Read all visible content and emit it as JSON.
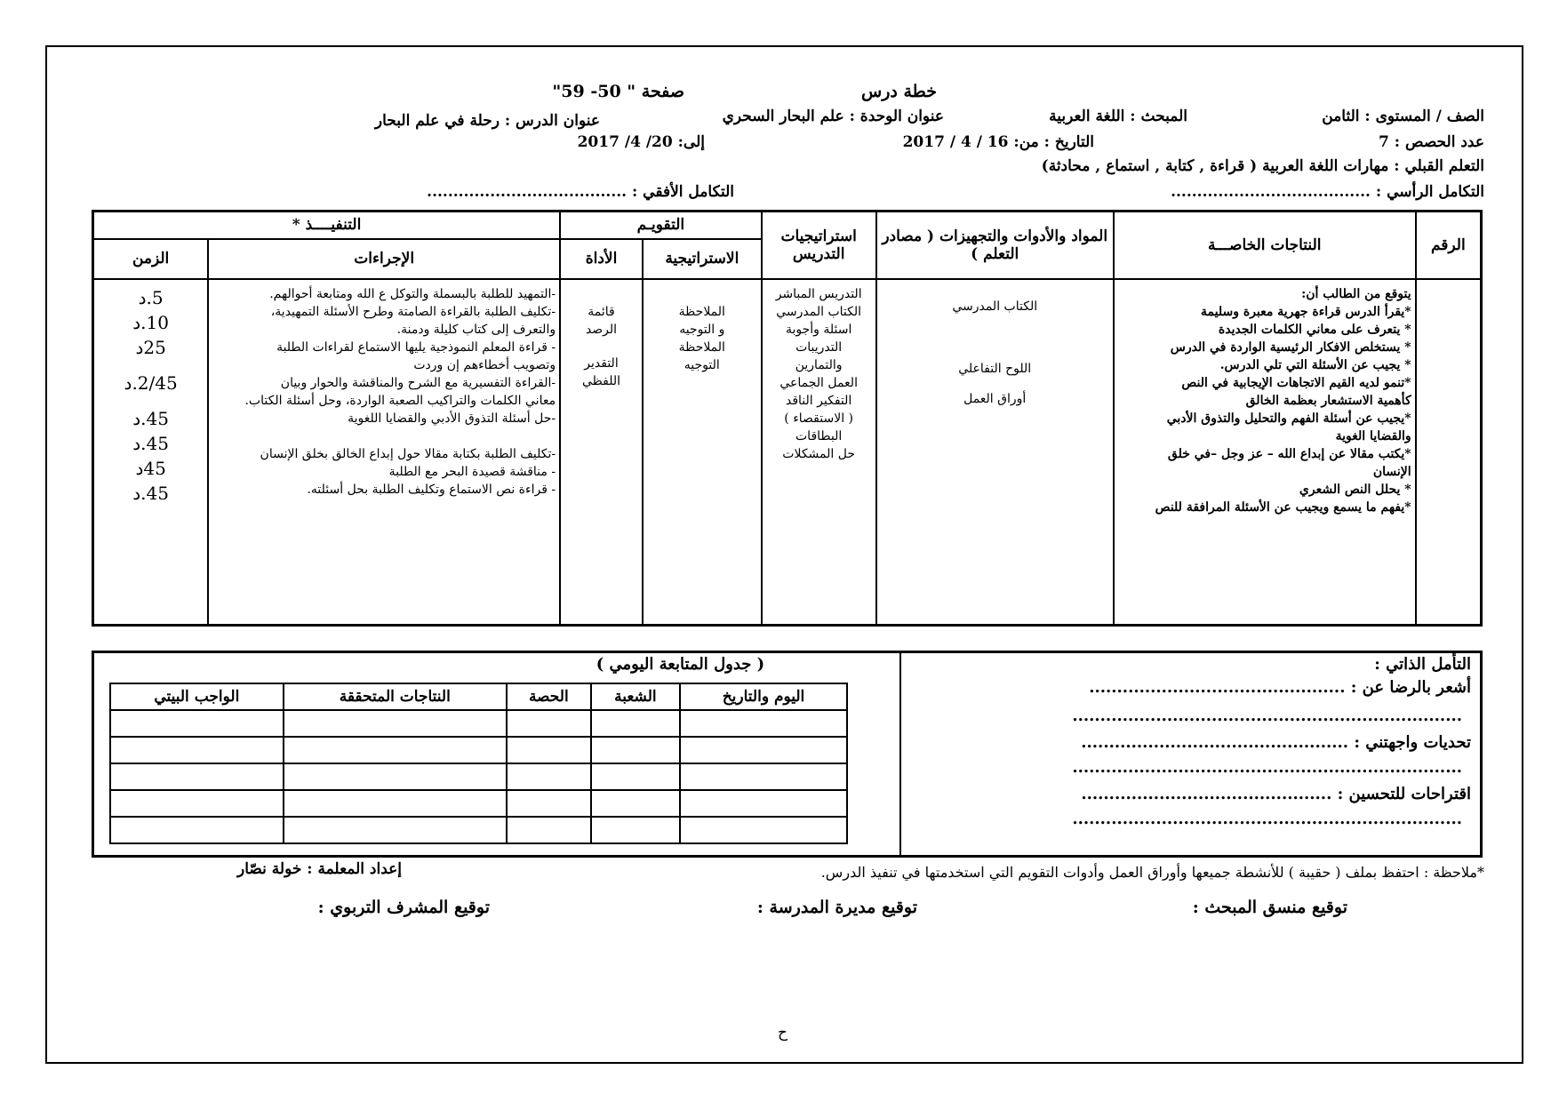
{
  "header": {
    "title": "خطة درس",
    "page": "صفحة \"  50- 59\"",
    "grade": "الصف / المستوى : الثامن",
    "subject": "المبحث : اللغة العربية",
    "unit": "عنوان الوحدة : علم البحار السحري",
    "lesson": "عنوان الدرس : رحلة في علم البحار",
    "periods": "عدد الحصص : 7",
    "date_from": "التاريخ : من: 16 / 4 / 2017",
    "date_to": "إلى: 20/ 4/ 2017",
    "prior": "التعلم القبلي : مهارات اللغة العربية ( قراءة , كتابة , استماع , محادثة)",
    "vertical": "التكامل الرأسي : ......................................",
    "horizontal": "التكامل الأفقي : ......................................"
  },
  "table": {
    "headers": {
      "number": "الرقم",
      "outcomes": "النتاجات الخاصـــة",
      "materials": "المواد والأدوات والتجهيزات ( مصادر التعلم )",
      "strategies": "استراتيجيات التدريس",
      "evaluation": "التقويـم",
      "eval_strategy": "الاستراتيجية",
      "eval_tool": "الأداة",
      "execution": "التنفيــــذ *",
      "procedures": "الإجراءات",
      "time": "الزمن"
    },
    "outcomes": [
      "يتوقع من الطالب أن:",
      "*يقرأ الدرس قراءة جهرية معبرة وسليمة",
      "* يتعرف على معاني الكلمات الجديدة",
      "* يستخلص الافكار الرئيسية الواردة في الدرس",
      "* يجيب عن الأسئلة التي تلي الدرس.",
      "*تنمو لديه القيم الاتجاهات الإيجابية في النص",
      "كأهمية الاستشعار بعظمة الخالق",
      "*يجيب عن أسئلة الفهم والتحليل والتذوق الأدبي",
      "والقضايا الغوية",
      "*يكتب مقالا عن إبداع الله – عز وجل –في خلق",
      "الإنسان",
      "* يحلل النص الشعري",
      "*يفهم ما يسمع ويجيب عن الأسئلة المرافقة للنص"
    ],
    "materials": [
      "الكتاب المدرسي",
      "اللوح التفاعلي",
      "أوراق العمل"
    ],
    "strategies": [
      "التدريس المباشر",
      "الكتاب المدرسي",
      "اسئلة وأجوبة",
      "التدريبات",
      "والتمارين",
      "العمل الجماعي",
      "التفكير الناقد",
      "( الاستقصاء )",
      "البطاقات",
      "حل المشكلات"
    ],
    "eval_strategies": [
      "الملاحظة",
      "و التوجيه",
      "الملاحظة",
      "التوجيه"
    ],
    "eval_tools": [
      "قائمة",
      "الرصد",
      "التقدير",
      "اللفظي"
    ],
    "procedures": [
      "-التمهيد للطلبة بالبسملة والتوكل ع الله ومتابعة أحوالهم.",
      "-تكليف الطلبة بالقراءة الصامتة وطرح الأسئلة التمهيدية،",
      "والتعرف إلى كتاب كليلة ودمنة.",
      "- قراءة المعلم النموذجية يليها الاستماع لقراءات الطلبة",
      "وتصويب أخطاءهم إن وردت",
      "-القراءة التفسيرية مع الشرح والمناقشة والحوار وبيان",
      "معاني الكلمات والتراكيب الصعبة الواردة، وحل أسئلة الكتاب.",
      "-حل أسئلة التذوق الأدبي والقضايا اللغوية",
      "-تكليف الطلبة بكتابة مقالا حول إبداع الخالق بخلق الإنسان",
      "- مناقشة قصيدة البحر مع الطلبة",
      "- قراءة نص الاستماع وتكليف الطلبة بحل أسئلته."
    ],
    "times": [
      "5.د",
      "10.د",
      "25د",
      "2/45.د",
      "45.د",
      "45.د",
      "45د",
      "45.د"
    ]
  },
  "reflection": {
    "title": "التأمل الذاتي :",
    "satisfied": "أشعر بالرضا عن : ..............................................",
    "challenges": "تحديات واجهتني : ................................................",
    "suggestions": "اقتراحات للتحسين : .............................................",
    "dots": "......................................................................"
  },
  "followup": {
    "title": "( جدول المتابعة اليومي )",
    "headers": [
      "اليوم والتاريخ",
      "الشعبة",
      "الحصة",
      "النتاجات المتحققة",
      "الواجب البيتي"
    ]
  },
  "footer": {
    "note": "*ملاحظة : احتفظ بملف ( حقيبة ) للأنشطة جميعها وأوراق العمل وأدوات التقويم التي استخدمتها في تنفيذ الدرس.",
    "prepared": "إعداد المعلمة : خولة نصّار",
    "coordinator": "توقيع منسق المبحث :",
    "principal": "توقيع مديرة المدرسة :",
    "supervisor": "توقيع المشرف التربوي :",
    "page_letter": "ح"
  }
}
